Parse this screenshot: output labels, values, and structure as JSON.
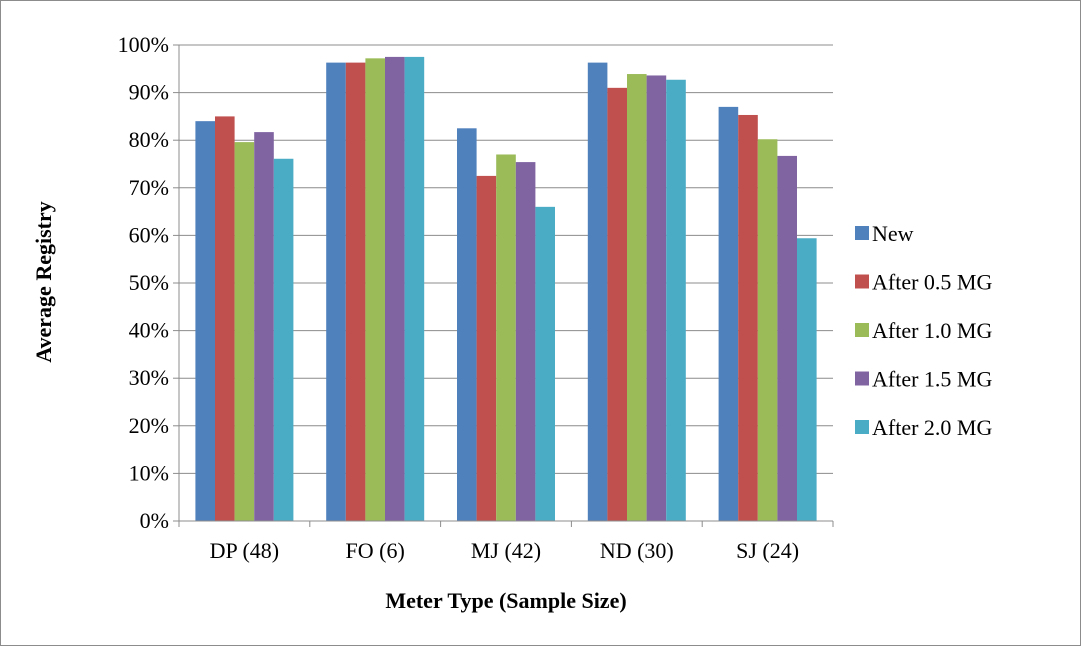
{
  "chart_data": {
    "type": "bar",
    "title": "",
    "xlabel": "Meter Type (Sample Size)",
    "ylabel": "Average Registry",
    "ylim": [
      0,
      100
    ],
    "y_ticks": [
      "0%",
      "10%",
      "20%",
      "30%",
      "40%",
      "50%",
      "60%",
      "70%",
      "80%",
      "90%",
      "100%"
    ],
    "y_tick_values": [
      0,
      10,
      20,
      30,
      40,
      50,
      60,
      70,
      80,
      90,
      100
    ],
    "grid": true,
    "legend_position": "right",
    "categories": [
      "DP (48)",
      "FO (6)",
      "MJ (42)",
      "ND (30)",
      "SJ (24)"
    ],
    "series": [
      {
        "name": "New",
        "color": "#4F81BD",
        "values": [
          84.0,
          96.3,
          82.5,
          96.3,
          87.0
        ]
      },
      {
        "name": "After 0.5 MG",
        "color": "#C0504D",
        "values": [
          85.0,
          96.3,
          72.5,
          91.0,
          85.3
        ]
      },
      {
        "name": "After 1.0 MG",
        "color": "#9BBB59",
        "values": [
          79.6,
          97.2,
          77.0,
          93.9,
          80.2
        ]
      },
      {
        "name": "After 1.5 MG",
        "color": "#8064A2",
        "values": [
          81.7,
          97.5,
          75.4,
          93.6,
          76.7
        ]
      },
      {
        "name": "After 2.0 MG",
        "color": "#4BACC6",
        "values": [
          76.1,
          97.5,
          66.0,
          92.7,
          59.4
        ]
      }
    ]
  }
}
